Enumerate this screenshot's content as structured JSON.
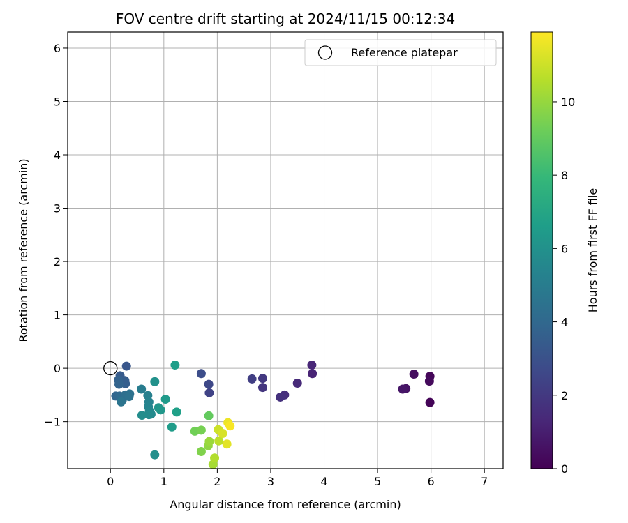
{
  "chart_data": {
    "type": "scatter",
    "title": "FOV centre drift starting at 2024/11/15 00:12:34",
    "xlabel": "Angular distance from reference (arcmin)",
    "ylabel": "Rotation from reference (arcmin)",
    "xlim": [
      -0.8,
      7.35
    ],
    "ylim": [
      -1.88,
      6.3
    ],
    "xticks": [
      "0",
      "1",
      "2",
      "3",
      "4",
      "5",
      "6",
      "7"
    ],
    "yticks": [
      "−1",
      "0",
      "1",
      "2",
      "3",
      "4",
      "5",
      "6"
    ],
    "grid": true,
    "legend": {
      "position": "top-right",
      "entries": [
        "Reference platepar"
      ]
    },
    "reference_point": {
      "x": 0,
      "y": 0
    },
    "colorbar": {
      "label": "Hours from first FF file",
      "range": [
        0,
        11.9
      ],
      "ticks": [
        "0",
        "2",
        "4",
        "6",
        "8",
        "10"
      ],
      "colormap": "viridis"
    },
    "points": [
      {
        "x": 5.98,
        "y": -0.64,
        "h": 0.1
      },
      {
        "x": 5.98,
        "y": -0.15,
        "h": 0.2
      },
      {
        "x": 5.97,
        "y": -0.24,
        "h": 0.3
      },
      {
        "x": 5.68,
        "y": -0.11,
        "h": 0.4
      },
      {
        "x": 5.53,
        "y": -0.38,
        "h": 0.6
      },
      {
        "x": 5.47,
        "y": -0.39,
        "h": 0.7
      },
      {
        "x": 3.78,
        "y": -0.1,
        "h": 1.2
      },
      {
        "x": 3.77,
        "y": 0.06,
        "h": 1.3
      },
      {
        "x": 3.5,
        "y": -0.28,
        "h": 1.4
      },
      {
        "x": 3.26,
        "y": -0.5,
        "h": 1.6
      },
      {
        "x": 3.18,
        "y": -0.54,
        "h": 1.7
      },
      {
        "x": 2.85,
        "y": -0.36,
        "h": 1.9
      },
      {
        "x": 2.85,
        "y": -0.19,
        "h": 2.0
      },
      {
        "x": 2.65,
        "y": -0.2,
        "h": 2.2
      },
      {
        "x": 1.85,
        "y": -0.46,
        "h": 2.4
      },
      {
        "x": 1.84,
        "y": -0.3,
        "h": 2.6
      },
      {
        "x": 1.7,
        "y": -0.1,
        "h": 2.8
      },
      {
        "x": 0.3,
        "y": 0.04,
        "h": 3.2
      },
      {
        "x": 0.18,
        "y": -0.14,
        "h": 3.4
      },
      {
        "x": 0.27,
        "y": -0.23,
        "h": 3.5
      },
      {
        "x": 0.28,
        "y": -0.29,
        "h": 3.6
      },
      {
        "x": 0.15,
        "y": -0.22,
        "h": 3.7
      },
      {
        "x": 0.16,
        "y": -0.3,
        "h": 3.8
      },
      {
        "x": 0.1,
        "y": -0.52,
        "h": 3.9
      },
      {
        "x": 0.17,
        "y": -0.52,
        "h": 4.0
      },
      {
        "x": 0.2,
        "y": -0.55,
        "h": 4.1
      },
      {
        "x": 0.22,
        "y": -0.6,
        "h": 4.2
      },
      {
        "x": 0.28,
        "y": -0.5,
        "h": 4.3
      },
      {
        "x": 0.36,
        "y": -0.48,
        "h": 4.4
      },
      {
        "x": 0.35,
        "y": -0.53,
        "h": 4.5
      },
      {
        "x": 0.2,
        "y": -0.63,
        "h": 4.6
      },
      {
        "x": 0.58,
        "y": -0.39,
        "h": 5.0
      },
      {
        "x": 0.7,
        "y": -0.51,
        "h": 5.2
      },
      {
        "x": 0.72,
        "y": -0.63,
        "h": 5.3
      },
      {
        "x": 0.71,
        "y": -0.72,
        "h": 5.4
      },
      {
        "x": 0.73,
        "y": -0.8,
        "h": 5.5
      },
      {
        "x": 0.76,
        "y": -0.86,
        "h": 5.6
      },
      {
        "x": 0.72,
        "y": -0.87,
        "h": 5.7
      },
      {
        "x": 0.59,
        "y": -0.88,
        "h": 5.8
      },
      {
        "x": 0.83,
        "y": -1.62,
        "h": 5.9
      },
      {
        "x": 0.83,
        "y": -0.25,
        "h": 6.0
      },
      {
        "x": 0.9,
        "y": -0.74,
        "h": 6.2
      },
      {
        "x": 0.94,
        "y": -0.78,
        "h": 6.3
      },
      {
        "x": 1.03,
        "y": -0.58,
        "h": 6.4
      },
      {
        "x": 1.15,
        "y": -1.1,
        "h": 6.5
      },
      {
        "x": 1.21,
        "y": 0.06,
        "h": 6.6
      },
      {
        "x": 1.24,
        "y": -0.82,
        "h": 6.7
      },
      {
        "x": 1.84,
        "y": -0.89,
        "h": 9.0
      },
      {
        "x": 1.58,
        "y": -1.18,
        "h": 9.3
      },
      {
        "x": 1.7,
        "y": -1.16,
        "h": 9.4
      },
      {
        "x": 1.7,
        "y": -1.56,
        "h": 9.6
      },
      {
        "x": 1.83,
        "y": -1.45,
        "h": 9.9
      },
      {
        "x": 1.85,
        "y": -1.37,
        "h": 10.1
      },
      {
        "x": 1.92,
        "y": -1.8,
        "h": 10.3
      },
      {
        "x": 1.95,
        "y": -1.68,
        "h": 10.5
      },
      {
        "x": 2.03,
        "y": -1.36,
        "h": 10.7
      },
      {
        "x": 2.02,
        "y": -1.15,
        "h": 11.0
      },
      {
        "x": 2.1,
        "y": -1.22,
        "h": 11.2
      },
      {
        "x": 2.18,
        "y": -1.42,
        "h": 11.4
      },
      {
        "x": 2.2,
        "y": -1.02,
        "h": 11.6
      },
      {
        "x": 2.24,
        "y": -1.08,
        "h": 11.8
      }
    ]
  }
}
